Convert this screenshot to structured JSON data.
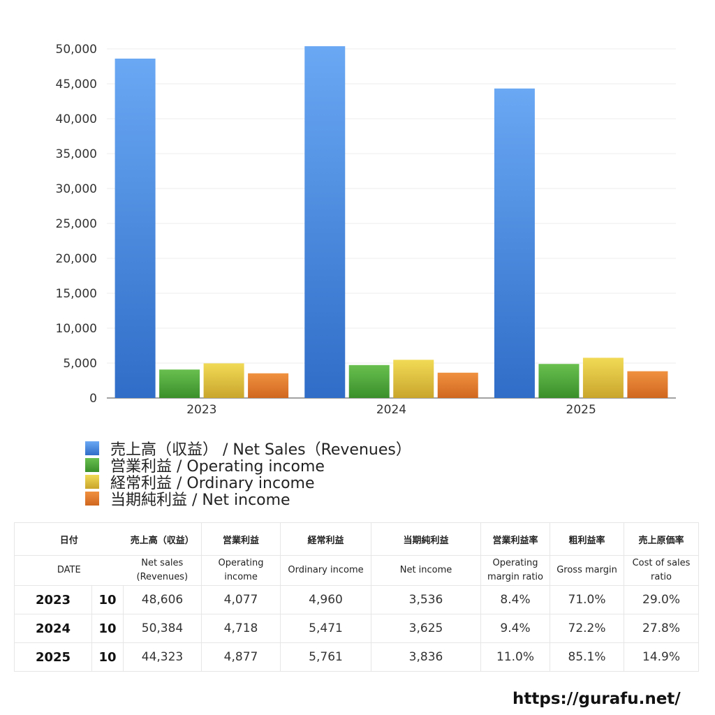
{
  "chart_data": {
    "type": "bar",
    "categories": [
      "2023",
      "2024",
      "2025"
    ],
    "series": [
      {
        "name": "売上高（収益） / Net Sales（Revenues）",
        "values": [
          48606,
          50384,
          44323
        ],
        "color": "#4a8ee6"
      },
      {
        "name": "営業利益 / Operating income",
        "values": [
          4077,
          4718,
          4877
        ],
        "color": "#4fae3a"
      },
      {
        "name": "経常利益 / Ordinary income",
        "values": [
          4960,
          5471,
          5761
        ],
        "color": "#e2c13c"
      },
      {
        "name": "当期純利益 / Net income",
        "values": [
          3536,
          3625,
          3836
        ],
        "color": "#e0792e"
      }
    ],
    "ylim": [
      0,
      50000
    ],
    "yticks": [
      0,
      5000,
      10000,
      15000,
      20000,
      25000,
      30000,
      35000,
      40000,
      45000,
      50000
    ],
    "ytick_labels": [
      "0",
      "5,000",
      "10,000",
      "15,000",
      "20,000",
      "25,000",
      "30,000",
      "35,000",
      "40,000",
      "45,000",
      "50,000"
    ],
    "grid": true,
    "legend_position": "bottom-left"
  },
  "table": {
    "headers_jp": [
      "日付",
      "売上高（収益）",
      "営業利益",
      "経常利益",
      "当期純利益",
      "営業利益率",
      "粗利益率",
      "売上原価率"
    ],
    "headers_en": [
      "DATE",
      "Net sales (Revenues)",
      "Operating income",
      "Ordinary income",
      "Net income",
      "Operating margin ratio",
      "Gross margin",
      "Cost of sales ratio"
    ],
    "rows": [
      {
        "year": "2023",
        "month": "10",
        "cells": [
          "48,606",
          "4,077",
          "4,960",
          "3,536",
          "8.4%",
          "71.0%",
          "29.0%"
        ]
      },
      {
        "year": "2024",
        "month": "10",
        "cells": [
          "50,384",
          "4,718",
          "5,471",
          "3,625",
          "9.4%",
          "72.2%",
          "27.8%"
        ]
      },
      {
        "year": "2025",
        "month": "10",
        "cells": [
          "44,323",
          "4,877",
          "5,761",
          "3,836",
          "11.0%",
          "85.1%",
          "14.9%"
        ]
      }
    ]
  },
  "footer": {
    "url": "https://gurafu.net/"
  }
}
